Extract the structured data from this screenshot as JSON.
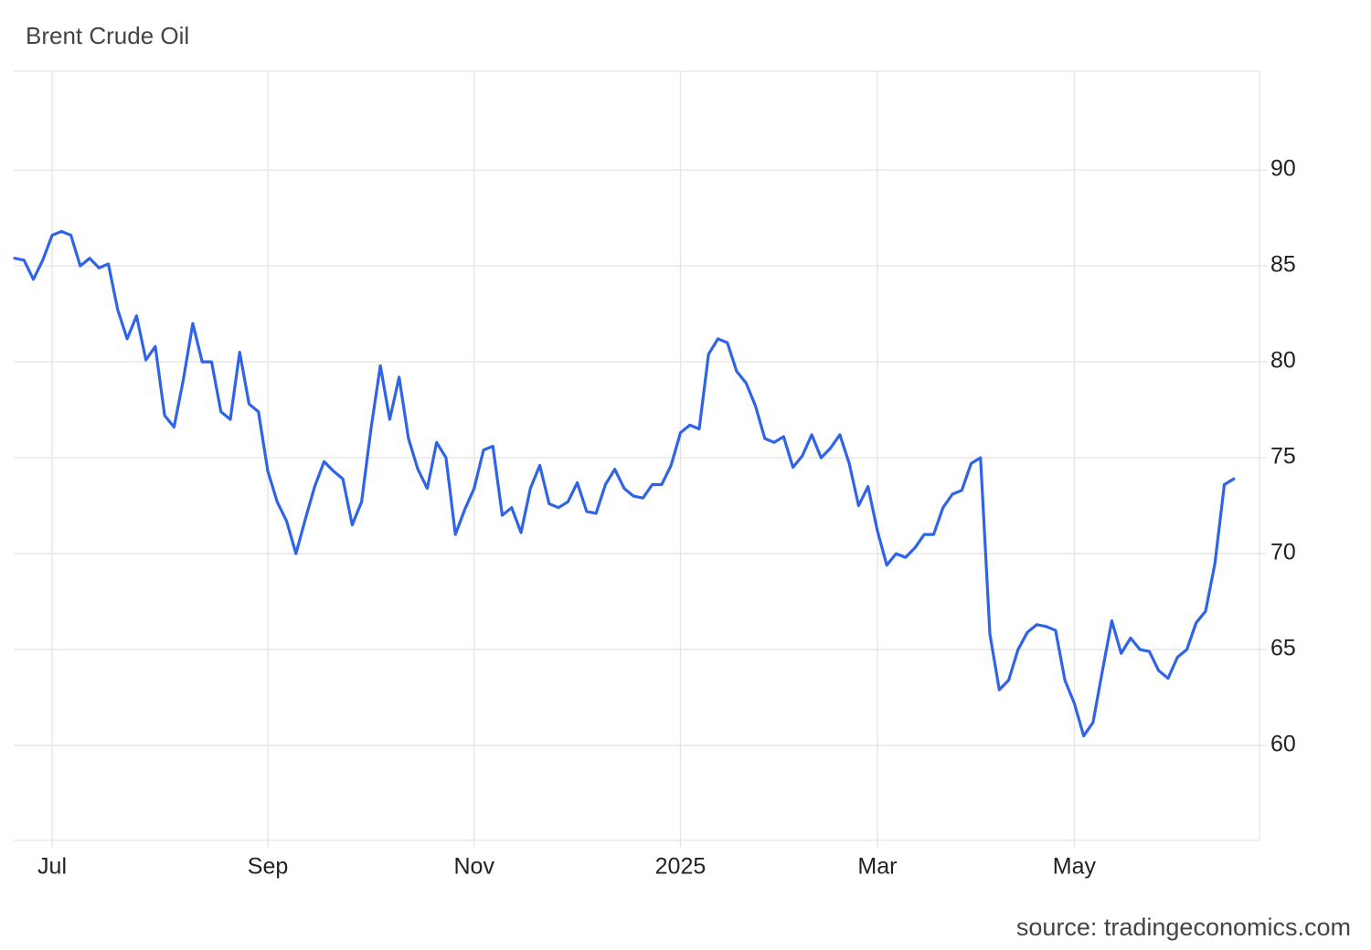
{
  "chart_data": {
    "type": "line",
    "title": "Brent Crude Oil",
    "source": "source: tradingeconomics.com",
    "categories": [
      null,
      null,
      null,
      null,
      "Jul",
      null,
      null,
      null,
      null,
      null,
      null,
      null,
      null,
      null,
      null,
      null,
      null,
      null,
      null,
      null,
      null,
      null,
      null,
      null,
      null,
      null,
      null,
      "Sep",
      null,
      null,
      null,
      null,
      null,
      null,
      null,
      null,
      null,
      null,
      null,
      null,
      null,
      null,
      null,
      null,
      null,
      null,
      null,
      null,
      null,
      "Nov",
      null,
      null,
      null,
      null,
      null,
      null,
      null,
      null,
      null,
      null,
      null,
      null,
      null,
      null,
      null,
      null,
      null,
      null,
      null,
      null,
      null,
      "2025",
      null,
      null,
      null,
      null,
      null,
      null,
      null,
      null,
      null,
      null,
      null,
      null,
      null,
      null,
      null,
      null,
      null,
      null,
      null,
      null,
      "Mar",
      null,
      null,
      null,
      null,
      null,
      null,
      null,
      null,
      null,
      null,
      null,
      null,
      null,
      null,
      null,
      null,
      null,
      null,
      null,
      null,
      "May",
      null,
      null,
      null,
      null,
      null,
      null,
      null,
      null,
      null,
      null,
      null,
      null,
      null,
      null,
      null,
      null,
      null
    ],
    "series": [
      {
        "color": "#2f63e8",
        "values": [
          85.4,
          85.3,
          84.3,
          85.3,
          86.6,
          86.8,
          86.6,
          85.0,
          85.4,
          84.9,
          85.1,
          82.7,
          81.2,
          82.4,
          80.1,
          80.8,
          77.2,
          76.6,
          79.1,
          82.0,
          80.0,
          80.0,
          77.4,
          77.0,
          80.5,
          77.8,
          77.4,
          74.3,
          72.7,
          71.7,
          70.0,
          71.8,
          73.5,
          74.8,
          74.3,
          73.9,
          71.5,
          72.7,
          76.5,
          79.8,
          77.0,
          79.2,
          76.0,
          74.4,
          73.4,
          75.8,
          75.0,
          71.0,
          72.3,
          73.4,
          75.4,
          75.6,
          72.0,
          72.4,
          71.1,
          73.4,
          74.6,
          72.6,
          72.4,
          72.7,
          73.7,
          72.2,
          72.1,
          73.6,
          74.4,
          73.4,
          73.0,
          72.9,
          73.6,
          73.6,
          74.6,
          76.3,
          76.7,
          76.5,
          80.4,
          81.2,
          81.0,
          79.5,
          78.9,
          77.7,
          76.0,
          75.8,
          76.1,
          74.5,
          75.1,
          76.2,
          75.0,
          75.5,
          76.2,
          74.7,
          72.5,
          73.5,
          71.2,
          69.4,
          70.0,
          69.8,
          70.3,
          71.0,
          71.0,
          72.4,
          73.1,
          73.3,
          74.7,
          75.0,
          65.8,
          62.9,
          63.4,
          65.0,
          65.9,
          66.3,
          66.2,
          66.0,
          63.4,
          62.2,
          60.5,
          61.2,
          63.9,
          66.5,
          64.8,
          65.6,
          65.0,
          64.9,
          63.9,
          63.5,
          64.6,
          65.0,
          66.4,
          67.0,
          69.5,
          73.6,
          73.9
        ]
      }
    ],
    "ylim": [
      55.05,
      95.15
    ],
    "yticks": [
      60,
      65,
      70,
      75,
      80,
      85,
      90
    ],
    "grid": true
  }
}
